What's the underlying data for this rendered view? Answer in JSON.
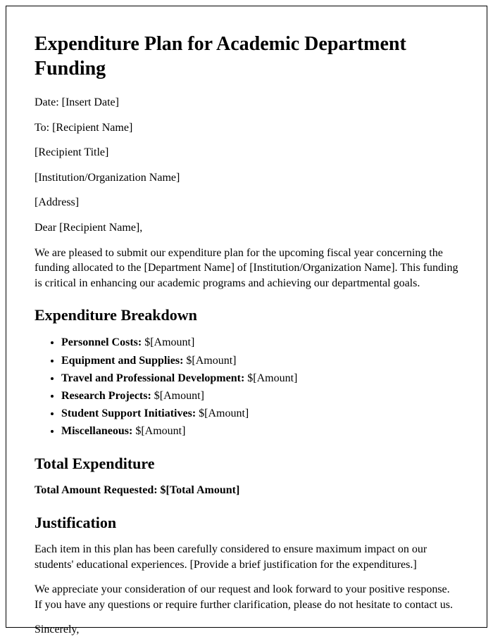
{
  "title": "Expenditure Plan for Academic Department Funding",
  "meta": {
    "date_label": "Date: [Insert Date]",
    "to_label": "To: [Recipient Name]",
    "recipient_title": "[Recipient Title]",
    "institution": "[Institution/Organization Name]",
    "address": "[Address]"
  },
  "salutation": "Dear [Recipient Name],",
  "intro": "We are pleased to submit our expenditure plan for the upcoming fiscal year concerning the funding allocated to the [Department Name] of [Institution/Organization Name]. This funding is critical in enhancing our academic programs and achieving our departmental goals.",
  "sections": {
    "breakdown_heading": "Expenditure Breakdown",
    "total_heading": "Total Expenditure",
    "justification_heading": "Justification"
  },
  "breakdown": [
    {
      "label": "Personnel Costs:",
      "value": " $[Amount]"
    },
    {
      "label": "Equipment and Supplies:",
      "value": " $[Amount]"
    },
    {
      "label": "Travel and Professional Development:",
      "value": " $[Amount]"
    },
    {
      "label": "Research Projects:",
      "value": " $[Amount]"
    },
    {
      "label": "Student Support Initiatives:",
      "value": " $[Amount]"
    },
    {
      "label": "Miscellaneous:",
      "value": " $[Amount]"
    }
  ],
  "total": {
    "label": "Total Amount Requested: ",
    "value": "$[Total Amount]"
  },
  "justification": "Each item in this plan has been carefully considered to ensure maximum impact on our students' educational experiences. [Provide a brief justification for the expenditures.]",
  "closing": "We appreciate your consideration of our request and look forward to your positive response. If you have any questions or require further clarification, please do not hesitate to contact us.",
  "signoff": "Sincerely,"
}
